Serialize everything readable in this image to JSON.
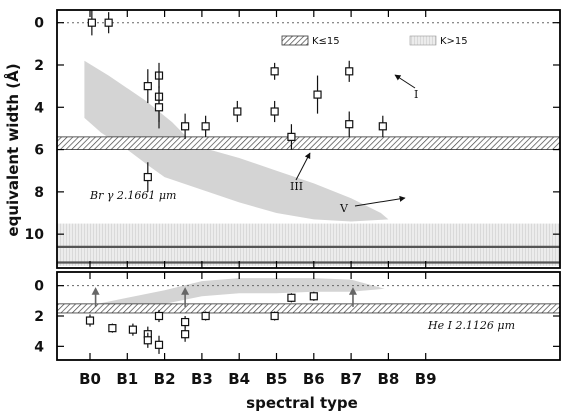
{
  "chart_data": {
    "type": "scatter",
    "xlabel": "spectral type",
    "ylabel": "equivalent width (Å)",
    "x_categories": [
      "B0",
      "B1",
      "B2",
      "B3",
      "B4",
      "B5",
      "B6",
      "B7",
      "B8",
      "B9"
    ],
    "legend": {
      "placement": "top",
      "entries": [
        {
          "label": "K≤15",
          "style": "hatched band"
        },
        {
          "label": "K>15",
          "style": "gray band"
        }
      ]
    },
    "colors": {
      "region": "#d4d4d4",
      "band": "#bdbdbd",
      "frame": "#000000"
    },
    "panels": [
      {
        "name": "top",
        "label": "Br γ 2.1661 μm",
        "y_inverted": true,
        "ylim": [
          -0.6,
          11.6
        ],
        "y_ticks": [
          "0",
          "2",
          "4",
          "6",
          "8",
          "10"
        ],
        "hatched_band": [
          5.4,
          6.0
        ],
        "gray_band": [
          9.5,
          11.5
        ],
        "dashed_line": 0,
        "annotations": [
          "I",
          "III",
          "V"
        ],
        "points": [
          {
            "x": 0.05,
            "y": 0.0,
            "err": 0.6
          },
          {
            "x": 0.5,
            "y": 0.0,
            "err": 0.5
          },
          {
            "x": 1.55,
            "y": 3.0,
            "err": 0.8
          },
          {
            "x": 1.55,
            "y": 7.3,
            "err": 0.7
          },
          {
            "x": 1.85,
            "y": 2.5,
            "err": 0.6
          },
          {
            "x": 1.85,
            "y": 3.5,
            "err": 1.2
          },
          {
            "x": 1.85,
            "y": 4.0,
            "err": 1.0
          },
          {
            "x": 2.55,
            "y": 4.9,
            "err": 0.6
          },
          {
            "x": 3.1,
            "y": 4.9,
            "err": 0.5
          },
          {
            "x": 3.95,
            "y": 4.2,
            "err": 0.5
          },
          {
            "x": 4.95,
            "y": 2.3,
            "err": 0.4
          },
          {
            "x": 4.95,
            "y": 4.2,
            "err": 0.5
          },
          {
            "x": 5.4,
            "y": 5.4,
            "err": 0.6
          },
          {
            "x": 6.1,
            "y": 3.4,
            "err": 0.9
          },
          {
            "x": 6.95,
            "y": 2.3,
            "err": 0.5
          },
          {
            "x": 6.95,
            "y": 4.8,
            "err": 0.6
          },
          {
            "x": 7.85,
            "y": 4.9,
            "err": 0.5
          }
        ],
        "region_upper": [
          [
            -0.15,
            1.8
          ],
          [
            0.5,
            2.5
          ],
          [
            1.5,
            3.7
          ],
          [
            2.2,
            4.7
          ],
          [
            2.7,
            5.6
          ],
          [
            3.2,
            6.0
          ],
          [
            4.0,
            6.4
          ],
          [
            5.0,
            7.0
          ],
          [
            6.0,
            7.6
          ],
          [
            7.0,
            8.3
          ],
          [
            7.8,
            9.0
          ],
          [
            8.0,
            9.3
          ]
        ],
        "region_lower": [
          [
            -0.15,
            4.5
          ],
          [
            0.3,
            5.2
          ],
          [
            1.0,
            6.0
          ],
          [
            1.6,
            6.8
          ],
          [
            2.0,
            7.3
          ],
          [
            3.0,
            7.9
          ],
          [
            4.0,
            8.5
          ],
          [
            5.0,
            9.0
          ],
          [
            6.0,
            9.3
          ],
          [
            7.0,
            9.4
          ],
          [
            8.0,
            9.3
          ]
        ]
      },
      {
        "name": "bottom",
        "label": "He I 2.1126 μm",
        "y_inverted": true,
        "ylim": [
          -0.9,
          4.9
        ],
        "y_ticks": [
          "0",
          "2",
          "4"
        ],
        "hatched_band": [
          1.2,
          1.8
        ],
        "dashed_line": 0,
        "limit_arrows": [
          {
            "x": 0.15,
            "y": 0.8
          },
          {
            "x": 2.55,
            "y": 0.8
          },
          {
            "x": 7.05,
            "y": 0.8
          }
        ],
        "points": [
          {
            "x": 0.0,
            "y": 2.3,
            "err": 0.4
          },
          {
            "x": 0.6,
            "y": 2.8,
            "err": 0.3
          },
          {
            "x": 1.15,
            "y": 2.9,
            "err": 0.4
          },
          {
            "x": 1.55,
            "y": 3.2,
            "err": 0.5
          },
          {
            "x": 1.55,
            "y": 3.6,
            "err": 0.5
          },
          {
            "x": 1.85,
            "y": 2.0,
            "err": 0.4
          },
          {
            "x": 1.85,
            "y": 3.9,
            "err": 0.6
          },
          {
            "x": 2.55,
            "y": 2.4,
            "err": 0.4
          },
          {
            "x": 2.55,
            "y": 3.2,
            "err": 0.5
          },
          {
            "x": 3.1,
            "y": 2.0,
            "err": 0.3
          },
          {
            "x": 4.95,
            "y": 2.0,
            "err": 0.3
          },
          {
            "x": 5.4,
            "y": 0.8,
            "err": 0.3
          },
          {
            "x": 6.0,
            "y": 0.7,
            "err": 0.3
          }
        ],
        "region_upper": [
          [
            0.0,
            1.3
          ],
          [
            1.0,
            0.8
          ],
          [
            2.0,
            0.3
          ],
          [
            3.0,
            -0.3
          ],
          [
            4.0,
            -0.5
          ],
          [
            5.0,
            -0.5
          ],
          [
            6.0,
            -0.5
          ],
          [
            7.0,
            -0.4
          ],
          [
            7.9,
            0.2
          ]
        ],
        "region_lower": [
          [
            0.0,
            1.3
          ],
          [
            1.0,
            1.3
          ],
          [
            2.0,
            1.2
          ],
          [
            3.0,
            0.7
          ],
          [
            4.0,
            0.5
          ],
          [
            5.0,
            0.5
          ],
          [
            6.0,
            0.4
          ],
          [
            7.0,
            0.4
          ],
          [
            7.9,
            0.2
          ]
        ]
      }
    ]
  }
}
